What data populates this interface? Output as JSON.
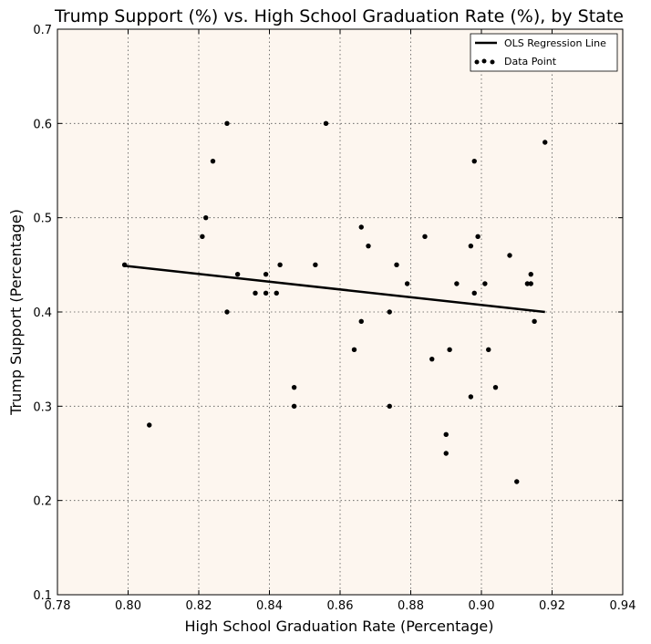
{
  "chart_data": {
    "type": "scatter",
    "title": "Trump Support (%) vs. High School Graduation Rate (%), by State",
    "xlabel": "High School Graduation Rate (Percentage)",
    "ylabel": "Trump Support (Percentage)",
    "xlim": [
      0.78,
      0.94
    ],
    "ylim": [
      0.1,
      0.7
    ],
    "xticks": [
      "0.78",
      "0.80",
      "0.82",
      "0.84",
      "0.86",
      "0.88",
      "0.90",
      "0.92",
      "0.94"
    ],
    "yticks": [
      "0.1",
      "0.2",
      "0.3",
      "0.4",
      "0.5",
      "0.6",
      "0.7"
    ],
    "grid": true,
    "legend_position": "top-right",
    "plot_background": "#fdf6ef",
    "series": [
      {
        "name": "OLS Regression Line",
        "kind": "line",
        "color": "#000000",
        "x": [
          0.799,
          0.918
        ],
        "y": [
          0.449,
          0.4
        ]
      },
      {
        "name": "Data Point",
        "kind": "scatter",
        "color": "#000000",
        "x": [
          0.799,
          0.806,
          0.821,
          0.822,
          0.824,
          0.828,
          0.828,
          0.831,
          0.836,
          0.839,
          0.839,
          0.842,
          0.843,
          0.847,
          0.847,
          0.853,
          0.856,
          0.864,
          0.866,
          0.866,
          0.868,
          0.874,
          0.874,
          0.876,
          0.879,
          0.884,
          0.886,
          0.89,
          0.89,
          0.891,
          0.893,
          0.897,
          0.897,
          0.898,
          0.898,
          0.899,
          0.901,
          0.902,
          0.904,
          0.908,
          0.91,
          0.913,
          0.914,
          0.914,
          0.915,
          0.918
        ],
        "y": [
          0.45,
          0.28,
          0.48,
          0.5,
          0.56,
          0.6,
          0.4,
          0.44,
          0.42,
          0.44,
          0.42,
          0.42,
          0.45,
          0.32,
          0.3,
          0.45,
          0.6,
          0.36,
          0.49,
          0.39,
          0.47,
          0.4,
          0.3,
          0.45,
          0.43,
          0.48,
          0.35,
          0.27,
          0.25,
          0.36,
          0.43,
          0.47,
          0.31,
          0.56,
          0.42,
          0.48,
          0.43,
          0.36,
          0.32,
          0.46,
          0.22,
          0.43,
          0.44,
          0.43,
          0.39,
          0.58
        ]
      }
    ]
  }
}
